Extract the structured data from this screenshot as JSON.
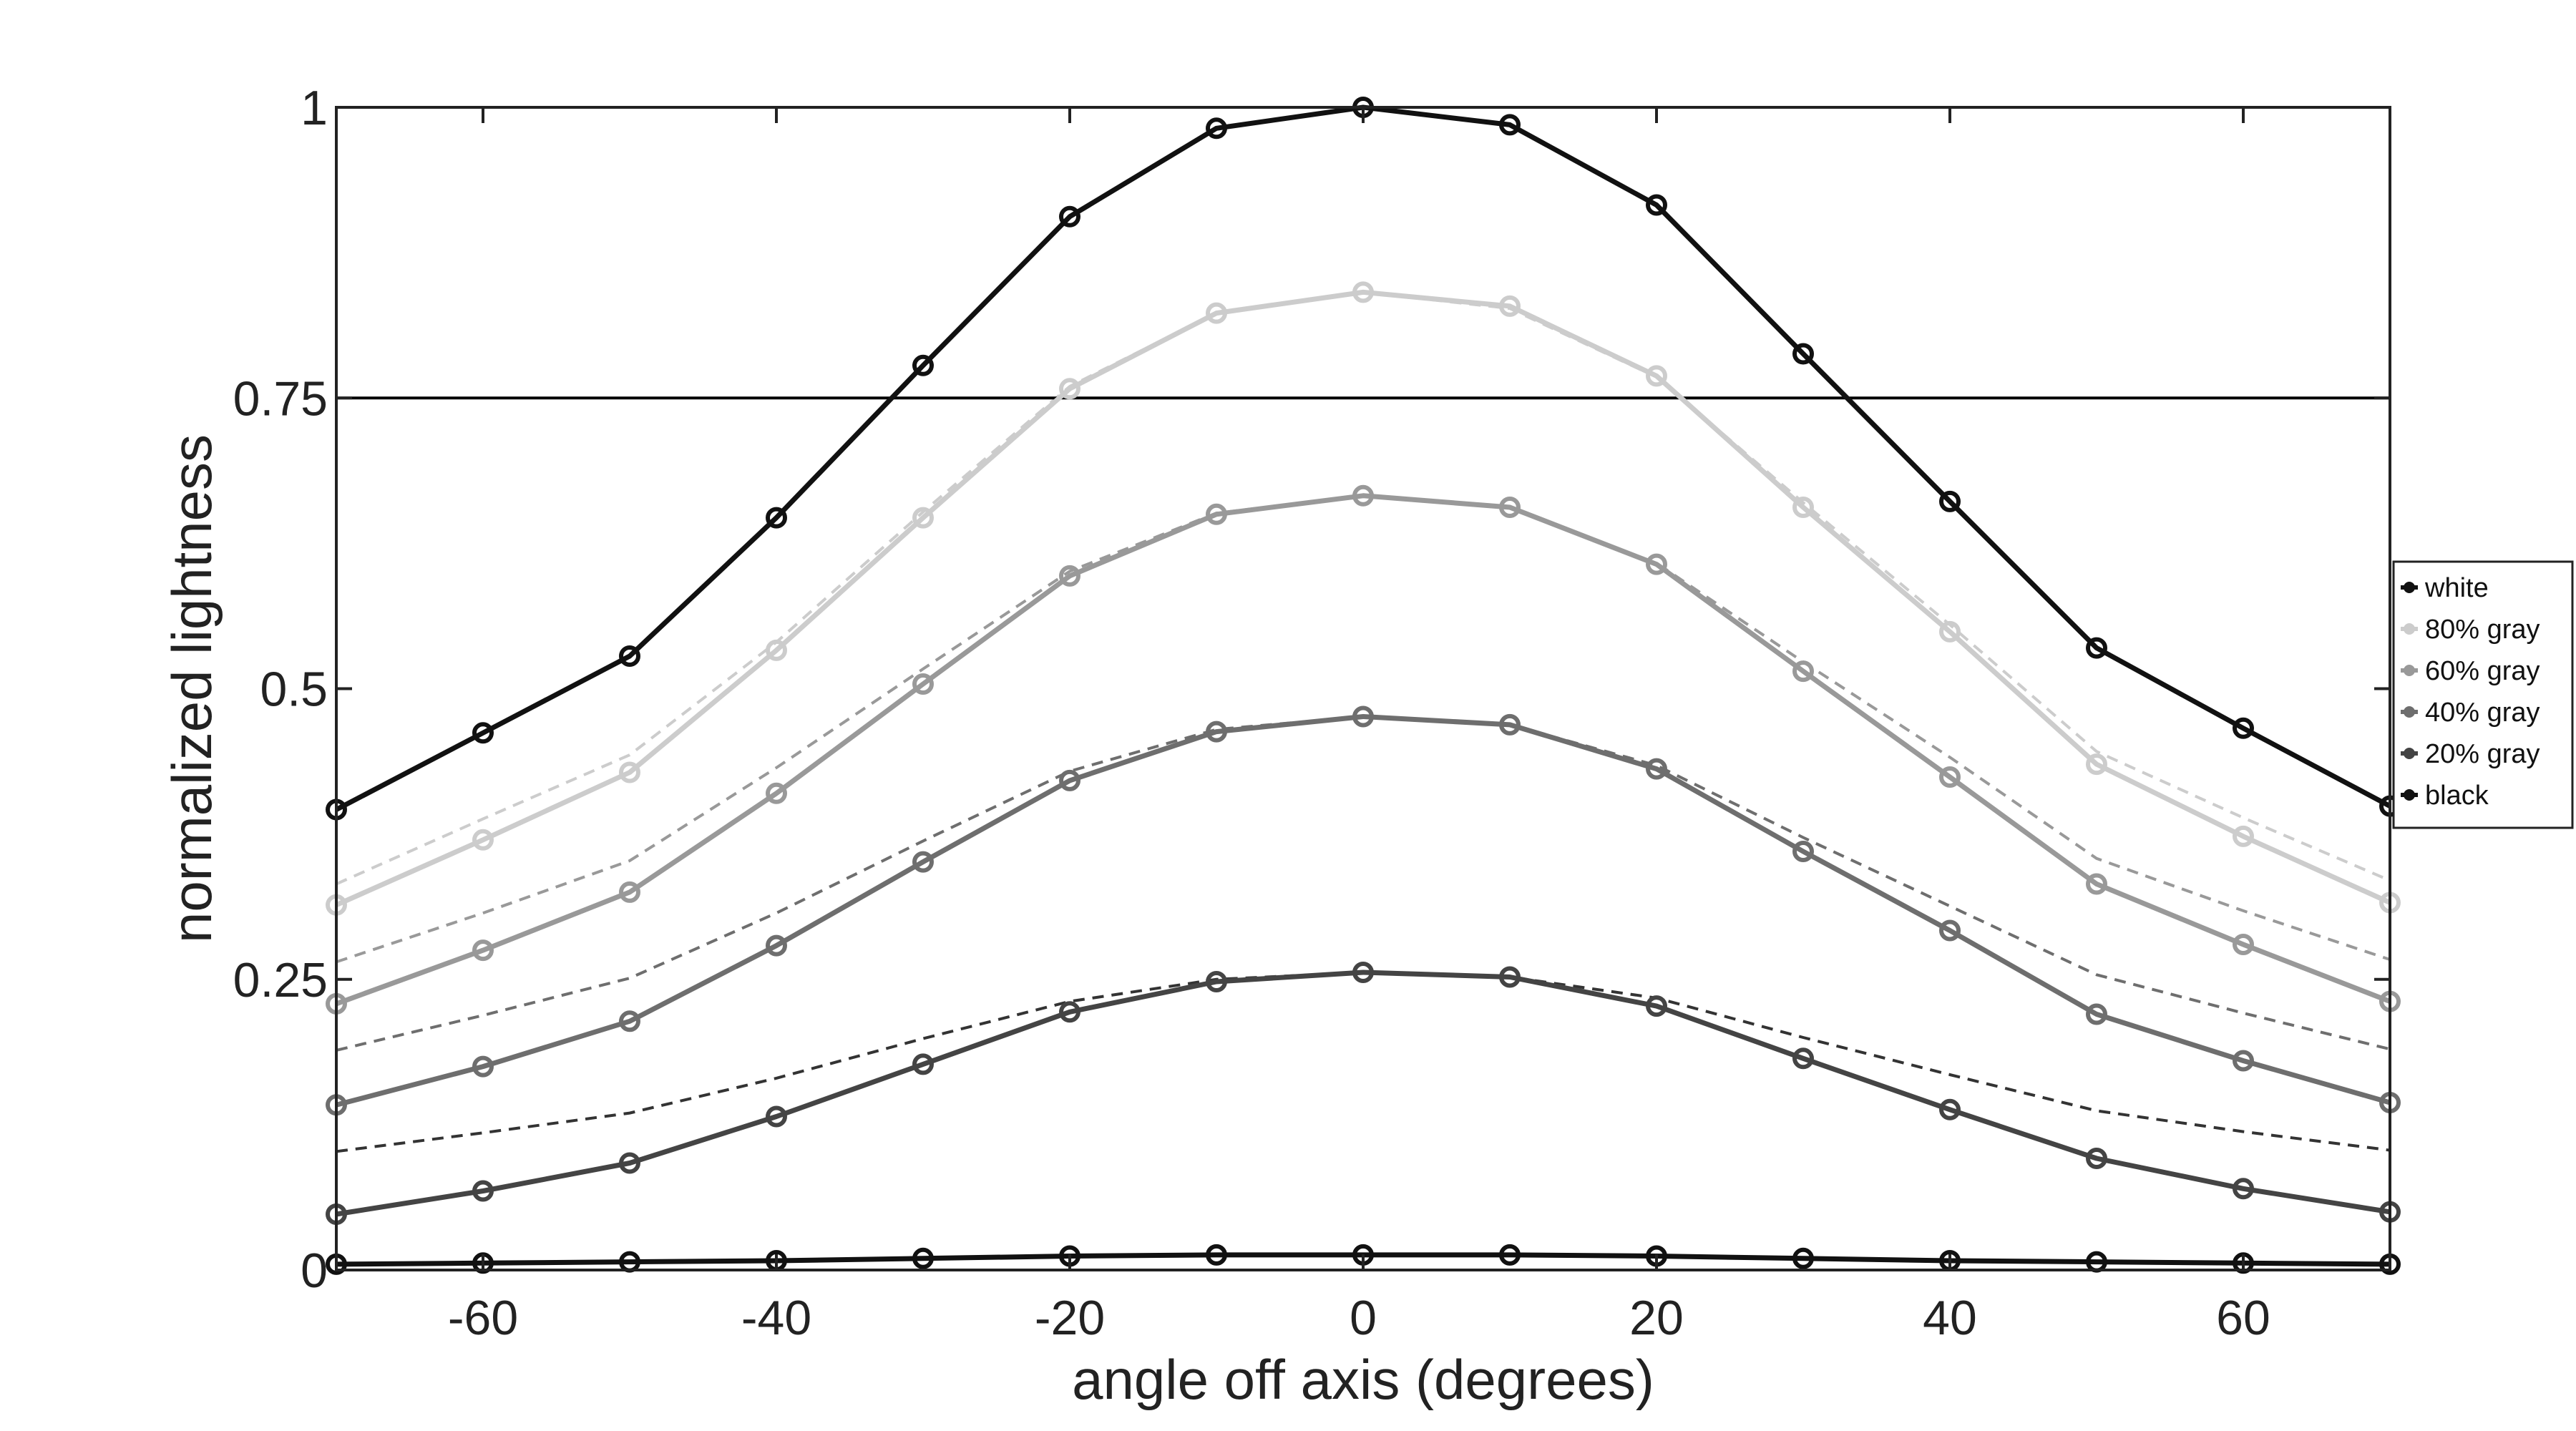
{
  "chart_data": {
    "type": "line",
    "title": "",
    "xlabel": "angle off axis (degrees)",
    "ylabel": "normalized lightness",
    "xlim": [
      -70,
      70
    ],
    "ylim": [
      0,
      1
    ],
    "xticks": [
      -60,
      -40,
      -20,
      0,
      20,
      40,
      60
    ],
    "xtick_labels": [
      "-60",
      "-40",
      "-20",
      "0",
      "20",
      "40",
      "60"
    ],
    "yticks": [
      0,
      0.25,
      0.5,
      0.75,
      1
    ],
    "ytick_labels": [
      "0",
      "0.25",
      "0.5",
      "0.75",
      "1"
    ],
    "reference_line": {
      "y": 0.75,
      "color": "#000000"
    },
    "grid": false,
    "legend": {
      "placement": "right"
    },
    "x": [
      -70,
      -60,
      -50,
      -40,
      -30,
      -20,
      -10,
      0,
      10,
      20,
      30,
      40,
      50,
      60,
      70
    ],
    "series": [
      {
        "name": "white",
        "color": "#111111",
        "values": [
          0.396,
          0.462,
          0.528,
          0.647,
          0.778,
          0.906,
          0.982,
          1.0,
          0.985,
          0.916,
          0.788,
          0.661,
          0.535,
          0.466,
          0.399
        ]
      },
      {
        "name": "80% gray",
        "color": "#cccccc",
        "values": [
          0.314,
          0.37,
          0.428,
          0.533,
          0.647,
          0.758,
          0.823,
          0.841,
          0.829,
          0.769,
          0.656,
          0.549,
          0.435,
          0.373,
          0.316
        ]
      },
      {
        "name": "60% gray",
        "color": "#999999",
        "values": [
          0.229,
          0.275,
          0.325,
          0.41,
          0.504,
          0.597,
          0.65,
          0.666,
          0.656,
          0.607,
          0.515,
          0.424,
          0.332,
          0.28,
          0.231
        ]
      },
      {
        "name": "40% gray",
        "color": "#6e6e6e",
        "values": [
          0.142,
          0.175,
          0.214,
          0.279,
          0.351,
          0.421,
          0.463,
          0.476,
          0.469,
          0.431,
          0.36,
          0.292,
          0.22,
          0.18,
          0.144
        ]
      },
      {
        "name": "20% gray",
        "color": "#444444",
        "values": [
          0.048,
          0.068,
          0.092,
          0.132,
          0.177,
          0.222,
          0.248,
          0.256,
          0.252,
          0.227,
          0.182,
          0.138,
          0.096,
          0.07,
          0.05
        ]
      },
      {
        "name": "black",
        "color": "#111111",
        "values": [
          0.005,
          0.006,
          0.007,
          0.008,
          0.01,
          0.012,
          0.013,
          0.013,
          0.013,
          0.012,
          0.01,
          0.008,
          0.007,
          0.006,
          0.005
        ]
      }
    ],
    "reference_series": [
      {
        "color": "#cccccc",
        "values": [
          0.332,
          0.388,
          0.443,
          0.54,
          0.652,
          0.76,
          0.823,
          0.841,
          0.827,
          0.768,
          0.66,
          0.555,
          0.446,
          0.389,
          0.335
        ]
      },
      {
        "color": "#999999",
        "values": [
          0.265,
          0.307,
          0.352,
          0.432,
          0.517,
          0.601,
          0.651,
          0.666,
          0.656,
          0.608,
          0.523,
          0.441,
          0.354,
          0.309,
          0.267
        ]
      },
      {
        "color": "#6e6e6e",
        "values": [
          0.189,
          0.219,
          0.251,
          0.307,
          0.369,
          0.429,
          0.465,
          0.476,
          0.469,
          0.434,
          0.372,
          0.313,
          0.254,
          0.221,
          0.19
        ]
      },
      {
        "color": "#333333",
        "values": [
          0.102,
          0.118,
          0.135,
          0.165,
          0.199,
          0.231,
          0.25,
          0.256,
          0.252,
          0.234,
          0.2,
          0.168,
          0.137,
          0.119,
          0.103
        ]
      }
    ]
  }
}
